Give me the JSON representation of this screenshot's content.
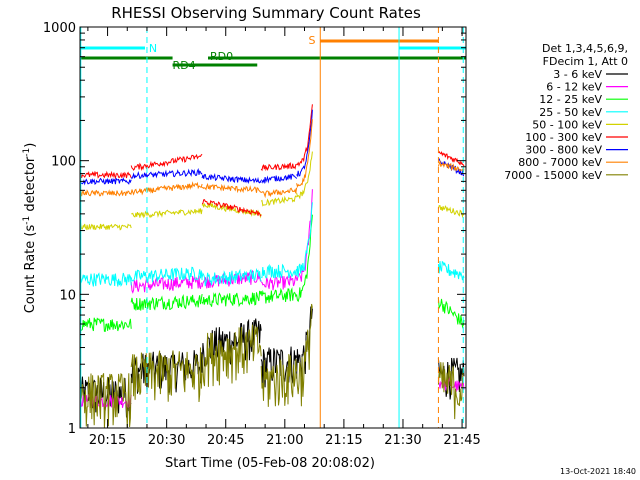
{
  "chart_data": {
    "type": "line",
    "title": "RHESSI Observing Summary Count Rates",
    "xlabel": "Start Time (05-Feb-08 20:08:02)",
    "ylabel": "Count Rate (s⁻¹ detector⁻¹)",
    "ylabel_parts": {
      "a": "Count Rate (s",
      "sup1": "-1",
      "b": " detector",
      "sup2": "-1",
      "c": ")"
    },
    "yscale": "log",
    "ylim": [
      1,
      1000
    ],
    "y_ticks": [
      {
        "v": 1,
        "label": "1"
      },
      {
        "v": 10,
        "label": "10"
      },
      {
        "v": 100,
        "label": "100"
      },
      {
        "v": 1000,
        "label": "1000"
      }
    ],
    "xlim_minutes": [
      0,
      98
    ],
    "x_ticks": [
      {
        "m": 7,
        "label": "20:15"
      },
      {
        "m": 22,
        "label": "20:30"
      },
      {
        "m": 37,
        "label": "20:45"
      },
      {
        "m": 52,
        "label": "21:00"
      },
      {
        "m": 67,
        "label": "21:15"
      },
      {
        "m": 82,
        "label": "21:30"
      },
      {
        "m": 97,
        "label": "21:45"
      }
    ],
    "legend_header": [
      "Det 1,3,4,5,6,9,",
      "FDecim 1, Att 0"
    ],
    "series": [
      {
        "name": "3 - 6 keV",
        "color": "#000000"
      },
      {
        "name": "6 - 12 keV",
        "color": "#ff00ff"
      },
      {
        "name": "12 - 25 keV",
        "color": "#00ff00"
      },
      {
        "name": "25 - 50 keV",
        "color": "#00ffff"
      },
      {
        "name": "50 - 100 keV",
        "color": "#d2d200"
      },
      {
        "name": "100 - 300 keV",
        "color": "#ff0000"
      },
      {
        "name": "300 - 800 keV",
        "color": "#0000ff"
      },
      {
        "name": "800 - 7000 keV",
        "color": "#ff8000"
      },
      {
        "name": "7000 - 15000 keV",
        "color": "#808000"
      }
    ],
    "flag_bars": [
      {
        "label": "N",
        "color": "#00ffff"
      },
      {
        "label": "S",
        "color": "#ff8000"
      },
      {
        "label": "RD0",
        "color": "#008000"
      },
      {
        "label": "RD4",
        "color": "#008000"
      }
    ]
  },
  "footer": {
    "timestamp": "13-Oct-2021 18:40"
  }
}
